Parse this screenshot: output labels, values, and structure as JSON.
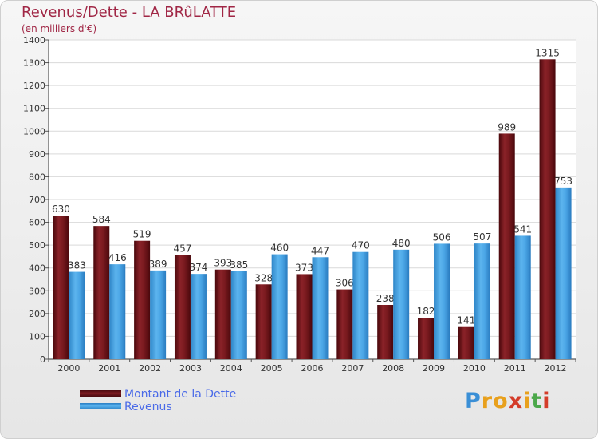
{
  "chart_data": {
    "type": "bar",
    "title": "Revenus/Dette - LA BRûLATTE",
    "subtitle": "(en milliers d'€)",
    "categories": [
      "2000",
      "2001",
      "2002",
      "2003",
      "2004",
      "2005",
      "2006",
      "2007",
      "2008",
      "2009",
      "2010",
      "2011",
      "2012"
    ],
    "series": [
      {
        "name": "Montant de la Dette",
        "color": "#7a1a1f",
        "values": [
          630,
          584,
          519,
          457,
          393,
          328,
          373,
          306,
          238,
          182,
          141,
          989,
          1315
        ]
      },
      {
        "name": "Revenus",
        "color": "#4ba6e6",
        "values": [
          383,
          416,
          389,
          374,
          385,
          460,
          447,
          470,
          480,
          506,
          507,
          541,
          753
        ]
      }
    ],
    "ylim": [
      0,
      1400
    ],
    "yticks": [
      0,
      100,
      200,
      300,
      400,
      500,
      600,
      700,
      800,
      900,
      1000,
      1100,
      1200,
      1300,
      1400
    ],
    "grid": true,
    "legend": "bottom-left"
  },
  "logo": {
    "letters": [
      "P",
      "r",
      "o",
      "x",
      "i",
      "t",
      "i"
    ],
    "colors": [
      "#3a8fd6",
      "#e8a01c",
      "#e8a01c",
      "#d43c2a",
      "#e8a01c",
      "#4ba84a",
      "#d43c2a"
    ]
  }
}
